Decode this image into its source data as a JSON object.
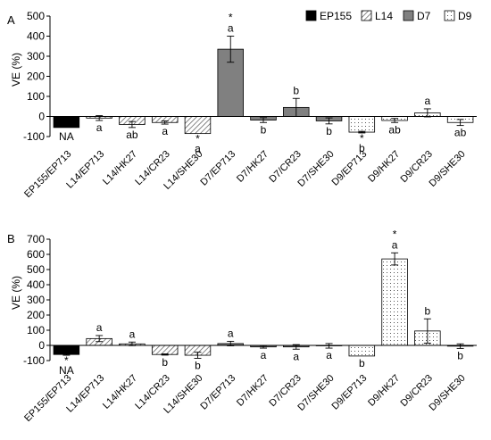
{
  "legend": [
    {
      "label": "EP155",
      "group": "EP155"
    },
    {
      "label": "L14",
      "group": "L14"
    },
    {
      "label": "D7",
      "group": "D7"
    },
    {
      "label": "D9",
      "group": "D9"
    }
  ],
  "colors": {
    "EP155": "#000000",
    "L14": "#dcdcdc",
    "D7": "#808080",
    "D9": "#ffffff",
    "axis": "#000000"
  },
  "chart_data": [
    {
      "type": "bar",
      "panel": "A",
      "ylabel": "VE (%)",
      "ylim": [
        -100,
        500
      ],
      "yticks": [
        -100,
        0,
        100,
        200,
        300,
        400,
        500
      ],
      "categories": [
        "EP155/EP713",
        "L14/EP713",
        "L14/HK27",
        "L14/CR23",
        "L14/SHE30",
        "D7/EP713",
        "D7/HK27",
        "D7/CR23",
        "D7/SHE30",
        "D9/EP713",
        "D9/HK27",
        "D9/CR23",
        "D9/SHE30"
      ],
      "groups": [
        "EP155",
        "L14",
        "L14",
        "L14",
        "L14",
        "D7",
        "D7",
        "D7",
        "D7",
        "D9",
        "D9",
        "D9",
        "D9"
      ],
      "values": [
        -55,
        -8,
        -40,
        -30,
        -85,
        335,
        -18,
        45,
        -22,
        -78,
        -20,
        18,
        -30
      ],
      "errors": [
        0,
        12,
        15,
        8,
        0,
        65,
        12,
        45,
        15,
        4,
        10,
        20,
        15
      ],
      "labels": [
        "NA",
        "a",
        "ab",
        "a",
        "a",
        "a",
        "b",
        "b",
        "b",
        "b",
        "ab",
        "a",
        "ab"
      ],
      "stars": [
        "",
        "",
        "",
        "",
        "*",
        "*",
        "",
        "",
        "",
        "*",
        "",
        "",
        ""
      ]
    },
    {
      "type": "bar",
      "panel": "B",
      "ylabel": "VE (%)",
      "ylim": [
        -100,
        700
      ],
      "yticks": [
        -100,
        0,
        100,
        200,
        300,
        400,
        500,
        600,
        700
      ],
      "categories": [
        "EP155/EP713",
        "L14/EP713",
        "L14/HK27",
        "L14/CR23",
        "L14/SHE30",
        "D7/EP713",
        "D7/HK27",
        "D7/CR23",
        "D7/SHE30",
        "D9/EP713",
        "D9/HK27",
        "D9/CR23",
        "D9/SHE30"
      ],
      "groups": [
        "EP155",
        "L14",
        "L14",
        "L14",
        "L14",
        "D7",
        "D7",
        "D7",
        "D7",
        "D9",
        "D9",
        "D9",
        "D9"
      ],
      "values": [
        -60,
        45,
        10,
        -60,
        -65,
        12,
        -10,
        -10,
        -3,
        -70,
        570,
        95,
        -5
      ],
      "errors": [
        5,
        20,
        12,
        4,
        20,
        15,
        8,
        15,
        15,
        0,
        40,
        80,
        15
      ],
      "labels": [
        "NA",
        "a",
        "a",
        "b",
        "b",
        "a",
        "a",
        "a",
        "a",
        "b",
        "a",
        "b",
        "b"
      ],
      "stars": [
        "*",
        "",
        "",
        "",
        "",
        "",
        "",
        "",
        "",
        "",
        "*",
        "",
        ""
      ]
    }
  ]
}
